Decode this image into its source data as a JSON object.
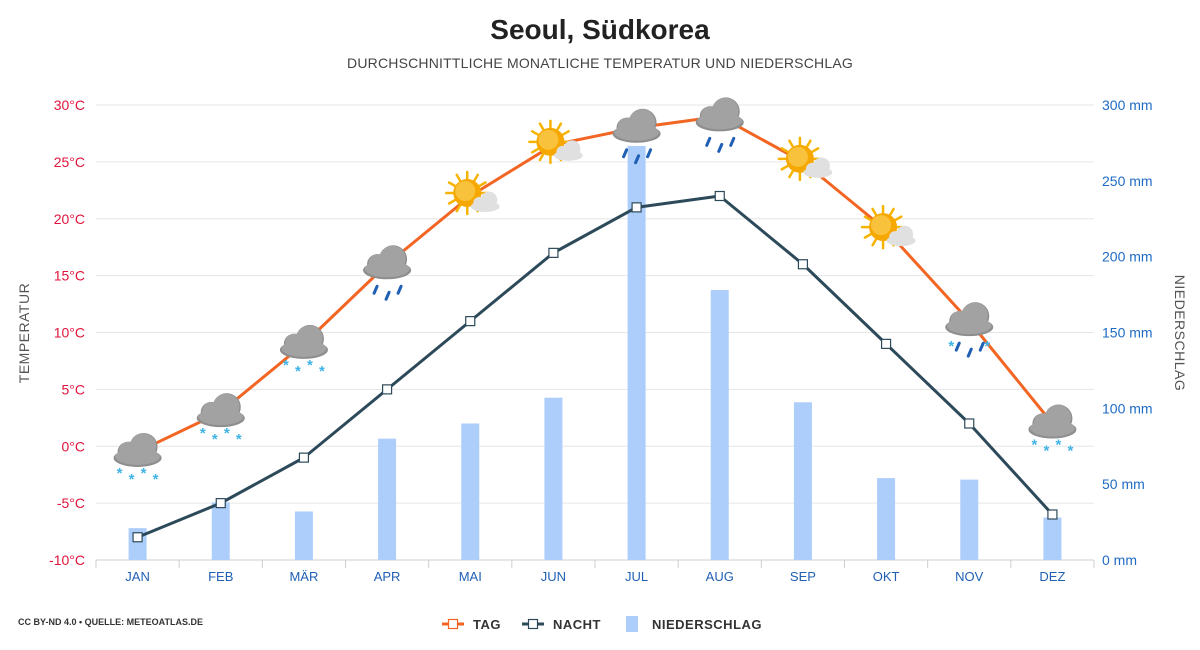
{
  "title": "Seoul, Südkorea",
  "subtitle": "DURCHSCHNITTLICHE MONATLICHE TEMPERATUR UND NIEDERSCHLAG",
  "credit": "CC BY-ND 4.0 • QUELLE: METEOATLAS.DE",
  "colors": {
    "day": "#f26522",
    "night": "#2d4a5a",
    "precip": "#adcdfb",
    "temp_axis": "#e0143c",
    "precip_axis": "#1f6bc4",
    "month_axis": "#1f5fb4"
  },
  "chart_data": {
    "type": "line",
    "categories": [
      "JAN",
      "FEB",
      "MÄR",
      "APR",
      "MAI",
      "JUN",
      "JUL",
      "AUG",
      "SEP",
      "OKT",
      "NOV",
      "DEZ"
    ],
    "series": [
      {
        "name": "TAG",
        "axis": "left",
        "values": [
          -0.5,
          3,
          9,
          16,
          22,
          26.5,
          28,
          29,
          25,
          19,
          11,
          2
        ]
      },
      {
        "name": "NACHT",
        "axis": "left",
        "values": [
          -8,
          -5,
          -1,
          5,
          11,
          17,
          21,
          22,
          16,
          9,
          2,
          -6
        ]
      },
      {
        "name": "NIEDERSCHLAG",
        "type": "bar",
        "axis": "right",
        "values": [
          21,
          38,
          32,
          80,
          90,
          107,
          273,
          178,
          104,
          54,
          53,
          28
        ]
      }
    ],
    "weather_icons": [
      "cloud-snow",
      "cloud-snow",
      "cloud-snow",
      "cloud-rain",
      "sun-cloud",
      "sun-cloud",
      "cloud-rain",
      "cloud-rain",
      "sun-cloud",
      "sun-cloud",
      "cloud-rain-snow",
      "cloud-snow"
    ],
    "y_left": {
      "label": "TEMPERATUR",
      "ylim": [
        -10,
        30
      ],
      "ticks": [
        "-10°C",
        "-5°C",
        "0°C",
        "5°C",
        "10°C",
        "15°C",
        "20°C",
        "25°C",
        "30°C"
      ]
    },
    "y_right": {
      "label": "NIEDERSCHLAG",
      "ylim": [
        0,
        300
      ],
      "ticks": [
        "0 mm",
        "50 mm",
        "100 mm",
        "150 mm",
        "200 mm",
        "250 mm",
        "300 mm"
      ]
    },
    "legend": {
      "position": "bottom-center",
      "items": [
        "TAG",
        "NACHT",
        "NIEDERSCHLAG"
      ]
    },
    "grid": true
  }
}
